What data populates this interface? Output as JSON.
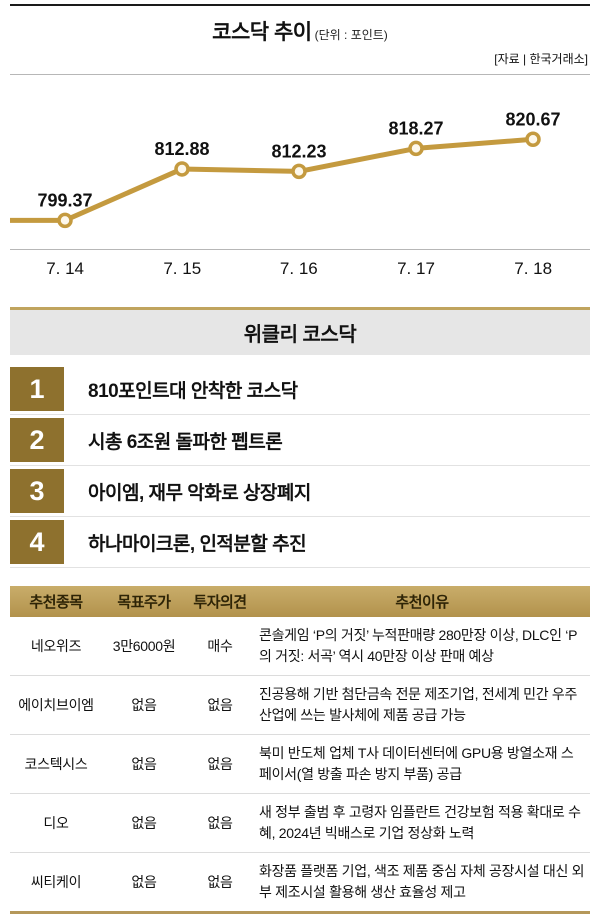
{
  "chart": {
    "title": "코스닥 추이",
    "unit_label": "(단위 : 포인트)",
    "source": "[자료 | 한국거래소]"
  },
  "chart_data": {
    "type": "line",
    "title": "코스닥 추이 (단위 : 포인트)",
    "categories": [
      "7. 14",
      "7. 15",
      "7. 16",
      "7. 17",
      "7. 18"
    ],
    "values": [
      799.37,
      812.88,
      812.23,
      818.27,
      820.67
    ],
    "ylim": [
      795,
      826
    ],
    "line_color": "#c49a3f",
    "marker_fill": "#fdf8ec",
    "legend": "none",
    "grid": "off"
  },
  "weekly": {
    "title": "위클리 코스닥",
    "items": [
      {
        "rank": "1",
        "text": "810포인트대 안착한 코스닥"
      },
      {
        "rank": "2",
        "text": "시총 6조원 돌파한 펩트론"
      },
      {
        "rank": "3",
        "text": "아이엠, 재무 악화로 상장폐지"
      },
      {
        "rank": "4",
        "text": "하나마이크론, 인적분할 추진"
      }
    ]
  },
  "table": {
    "headers": [
      "추천종목",
      "목표주가",
      "투자의견",
      "추천이유"
    ],
    "rows": [
      {
        "name": "네오위즈",
        "target": "3만6000원",
        "opinion": "매수",
        "reason": "콘솔게임 ‘P의 거짓’ 누적판매량 280만장 이상, DLC인 ‘P의 거짓: 서곡’ 역시 40만장 이상 판매 예상"
      },
      {
        "name": "에이치브이엠",
        "target": "없음",
        "opinion": "없음",
        "reason": "진공용해 기반 첨단금속 전문 제조기업, 전세계 민간 우주 산업에 쓰는 발사체에 제품 공급 가능"
      },
      {
        "name": "코스텍시스",
        "target": "없음",
        "opinion": "없음",
        "reason": "북미 반도체 업체 T사 데이터센터에 GPU용 방열소재 스페이서(열 방출 파손 방지 부품) 공급"
      },
      {
        "name": "디오",
        "target": "없음",
        "opinion": "없음",
        "reason": "새 정부 출범 후 고령자 임플란트 건강보험 적용 확대로 수혜, 2024년 빅배스로 기업 정상화 노력"
      },
      {
        "name": "씨티케이",
        "target": "없음",
        "opinion": "없음",
        "reason": "화장품 플랫폼 기업, 색조 제품 중심 자체 공장시설 대신 외부 제조시설 활용해 생산 효율성 제고"
      }
    ]
  },
  "colors": {
    "accent_gold": "#b5985a",
    "rank_box": "#8e712e",
    "header_gray": "#e6e6e6",
    "chart_line": "#c49a3f"
  }
}
